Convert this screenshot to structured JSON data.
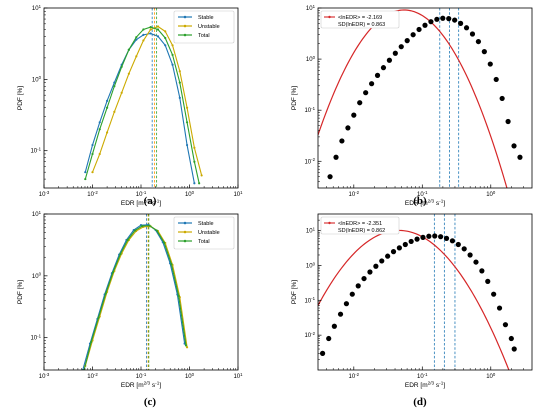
{
  "chart_data": [
    {
      "panel": "(a)",
      "type": "line",
      "xlabel": "EDR [m^{2/3} s^{-1}]",
      "ylabel": "PDF [%]",
      "xscale": "log",
      "yscale": "log",
      "xlim": [
        0.001,
        10
      ],
      "ylim": [
        0.03,
        10
      ],
      "x_ticks": [
        "10^{-3}",
        "10^{-2}",
        "10^{-1}",
        "10^{0}",
        "10^{1}"
      ],
      "y_ticks": [
        "10^{-1}",
        "10^{0}",
        "10^{1}"
      ],
      "legend": {
        "position": "top-right",
        "entries": [
          "Stable",
          "Unstable",
          "Total"
        ]
      },
      "vlines": [
        {
          "x": 0.17,
          "color": "#1f77b4",
          "style": "dashed"
        },
        {
          "x": 0.19,
          "color": "#ff9900",
          "style": "dashed"
        },
        {
          "x": 0.21,
          "color": "#2ca02c",
          "style": "dashed"
        }
      ],
      "series": [
        {
          "name": "Stable",
          "color": "#1f77b4",
          "x": [
            0.0071,
            0.01,
            0.0141,
            0.02,
            0.0282,
            0.04,
            0.0562,
            0.08,
            0.112,
            0.158,
            0.224,
            0.316,
            0.447,
            0.631,
            0.891,
            1.26
          ],
          "y": [
            0.05,
            0.12,
            0.25,
            0.5,
            0.9,
            1.6,
            2.6,
            3.6,
            4.2,
            4.4,
            4.0,
            3.0,
            1.6,
            0.55,
            0.12,
            0.035
          ]
        },
        {
          "name": "Unstable",
          "color": "#ccaa00",
          "x": [
            0.01,
            0.0141,
            0.02,
            0.0282,
            0.04,
            0.0562,
            0.08,
            0.112,
            0.158,
            0.224,
            0.316,
            0.447,
            0.631,
            0.891,
            1.26,
            1.78
          ],
          "y": [
            0.05,
            0.09,
            0.18,
            0.35,
            0.65,
            1.2,
            2.1,
            3.5,
            5.0,
            5.5,
            4.7,
            3.0,
            1.3,
            0.4,
            0.11,
            0.045
          ]
        },
        {
          "name": "Total",
          "color": "#2ca02c",
          "x": [
            0.0071,
            0.01,
            0.0141,
            0.02,
            0.0282,
            0.04,
            0.0562,
            0.08,
            0.112,
            0.158,
            0.224,
            0.316,
            0.447,
            0.631,
            0.891,
            1.26,
            1.58
          ],
          "y": [
            0.04,
            0.09,
            0.2,
            0.4,
            0.8,
            1.5,
            2.6,
            3.9,
            5.0,
            5.4,
            5.0,
            3.8,
            2.2,
            0.9,
            0.25,
            0.07,
            0.035
          ]
        }
      ]
    },
    {
      "panel": "(b)",
      "type": "scatter",
      "xlabel": "EDR [m^{2/3} s^{-1}]",
      "ylabel": "PDF [%]",
      "xscale": "log",
      "yscale": "log",
      "xlim": [
        0.003,
        4
      ],
      "ylim": [
        0.003,
        10
      ],
      "x_ticks": [
        "10^{-2}",
        "10^{-1}",
        "10^{0}"
      ],
      "y_ticks": [
        "10^{-2}",
        "10^{-1}",
        "10^{0}",
        "10^{1}"
      ],
      "legend": {
        "position": "top-left",
        "entries": [
          "<lnEDR> = -2.169",
          "SD(lnEDR) = 0.863"
        ]
      },
      "vlines": [
        {
          "x": 0.18,
          "color": "#1f77b4",
          "style": "dashed"
        },
        {
          "x": 0.25,
          "color": "#1f77b4",
          "style": "dashed"
        },
        {
          "x": 0.34,
          "color": "#1f77b4",
          "style": "dashed"
        }
      ],
      "fit": {
        "mu": -2.169,
        "sigma": 0.863,
        "peak": 6.3,
        "color": "#d62728"
      },
      "points": {
        "x": [
          0.0045,
          0.0055,
          0.0067,
          0.0082,
          0.01,
          0.0122,
          0.0149,
          0.0182,
          0.0222,
          0.0271,
          0.0331,
          0.0404,
          0.0493,
          0.0602,
          0.0735,
          0.0897,
          0.1095,
          0.1337,
          0.1632,
          0.1993,
          0.2433,
          0.297,
          0.3626,
          0.4427,
          0.5405,
          0.6599,
          0.8057,
          0.9836,
          1.2009,
          1.4662,
          1.79,
          2.1855,
          2.6683
        ],
        "y": [
          0.005,
          0.012,
          0.025,
          0.045,
          0.08,
          0.14,
          0.22,
          0.33,
          0.48,
          0.68,
          0.95,
          1.3,
          1.75,
          2.3,
          3.0,
          3.8,
          4.6,
          5.4,
          6.0,
          6.3,
          6.2,
          5.8,
          5.0,
          4.1,
          3.1,
          2.2,
          1.4,
          0.8,
          0.4,
          0.17,
          0.06,
          0.02,
          0.012
        ]
      }
    },
    {
      "panel": "(c)",
      "type": "line",
      "xlabel": "EDR [m^{2/3} s^{-1}]",
      "ylabel": "PDF [%]",
      "xscale": "log",
      "yscale": "log",
      "xlim": [
        0.001,
        10
      ],
      "ylim": [
        0.03,
        10
      ],
      "x_ticks": [
        "10^{-3}",
        "10^{-2}",
        "10^{-1}",
        "10^{0}",
        "10^{1}"
      ],
      "y_ticks": [
        "10^{-1}",
        "10^{0}",
        "10^{1}"
      ],
      "legend": {
        "position": "top-right",
        "entries": [
          "Stable",
          "Unstable",
          "Total"
        ]
      },
      "vlines": [
        {
          "x": 0.13,
          "color": "#1f77b4",
          "style": "dashed"
        },
        {
          "x": 0.14,
          "color": "#ff9900",
          "style": "dashed"
        },
        {
          "x": 0.145,
          "color": "#2ca02c",
          "style": "dashed"
        }
      ],
      "series": [
        {
          "name": "Stable",
          "color": "#1f77b4",
          "x": [
            0.0063,
            0.0089,
            0.0126,
            0.0178,
            0.0251,
            0.0355,
            0.0501,
            0.0708,
            0.1,
            0.141,
            0.2,
            0.282,
            0.398,
            0.562,
            0.794
          ],
          "y": [
            0.03,
            0.08,
            0.2,
            0.5,
            1.1,
            2.2,
            3.8,
            5.5,
            6.6,
            6.7,
            5.5,
            3.5,
            1.6,
            0.5,
            0.08
          ]
        },
        {
          "name": "Unstable",
          "color": "#ccaa00",
          "x": [
            0.0071,
            0.01,
            0.0141,
            0.02,
            0.0282,
            0.04,
            0.0562,
            0.0794,
            0.112,
            0.158,
            0.224,
            0.316,
            0.447,
            0.631,
            0.891
          ],
          "y": [
            0.035,
            0.09,
            0.22,
            0.55,
            1.2,
            2.3,
            3.8,
            5.3,
            6.2,
            6.3,
            5.3,
            3.4,
            1.5,
            0.45,
            0.07
          ]
        },
        {
          "name": "Total",
          "color": "#2ca02c",
          "x": [
            0.0067,
            0.0094,
            0.0133,
            0.0188,
            0.0266,
            0.0376,
            0.0531,
            0.075,
            0.106,
            0.15,
            0.212,
            0.3,
            0.423,
            0.598,
            0.845
          ],
          "y": [
            0.03,
            0.085,
            0.21,
            0.52,
            1.15,
            2.25,
            3.8,
            5.4,
            6.4,
            6.5,
            5.4,
            3.45,
            1.55,
            0.47,
            0.075
          ]
        }
      ]
    },
    {
      "panel": "(d)",
      "type": "scatter",
      "xlabel": "EDR [m^{2/3} s^{-1}]",
      "ylabel": "PDF [%]",
      "xscale": "log",
      "yscale": "log",
      "xlim": [
        0.003,
        4
      ],
      "ylim": [
        0.001,
        30
      ],
      "x_ticks": [
        "10^{-2}",
        "10^{-1}",
        "10^{0}"
      ],
      "y_ticks": [
        "10^{-2}",
        "10^{-1}",
        "10^{0}",
        "10^{1}"
      ],
      "legend": {
        "position": "top-left",
        "entries": [
          "<lnEDR> = -2.351",
          "SD(lnEDR) = 0.862"
        ]
      },
      "vlines": [
        {
          "x": 0.15,
          "color": "#1f77b4",
          "style": "dashed"
        },
        {
          "x": 0.21,
          "color": "#1f77b4",
          "style": "dashed"
        },
        {
          "x": 0.3,
          "color": "#1f77b4",
          "style": "dashed"
        }
      ],
      "fit": {
        "mu": -2.351,
        "sigma": 0.862,
        "peak": 7.0,
        "color": "#d62728"
      },
      "points": {
        "x": [
          0.0035,
          0.0043,
          0.0052,
          0.0064,
          0.0078,
          0.0095,
          0.0116,
          0.0141,
          0.0172,
          0.021,
          0.0256,
          0.0312,
          0.038,
          0.0463,
          0.0565,
          0.0688,
          0.0839,
          0.1023,
          0.1247,
          0.152,
          0.1853,
          0.2259,
          0.2754,
          0.3357,
          0.4093,
          0.4989,
          0.6082,
          0.7414,
          0.9038,
          1.1018,
          1.3432,
          1.6374,
          1.9961,
          2.2
        ],
        "y": [
          0.003,
          0.008,
          0.018,
          0.04,
          0.08,
          0.15,
          0.26,
          0.42,
          0.65,
          0.95,
          1.35,
          1.85,
          2.5,
          3.2,
          4.0,
          4.9,
          5.7,
          6.4,
          6.9,
          7.0,
          6.7,
          6.0,
          5.1,
          4.0,
          3.0,
          2.0,
          1.25,
          0.7,
          0.35,
          0.15,
          0.06,
          0.02,
          0.008,
          0.004
        ]
      }
    }
  ],
  "colors": {
    "stable": "#1f77b4",
    "unstable": "#ccaa00",
    "total": "#2ca02c",
    "fit": "#d62728",
    "points": "#000000",
    "vline": "#1f77b4"
  }
}
